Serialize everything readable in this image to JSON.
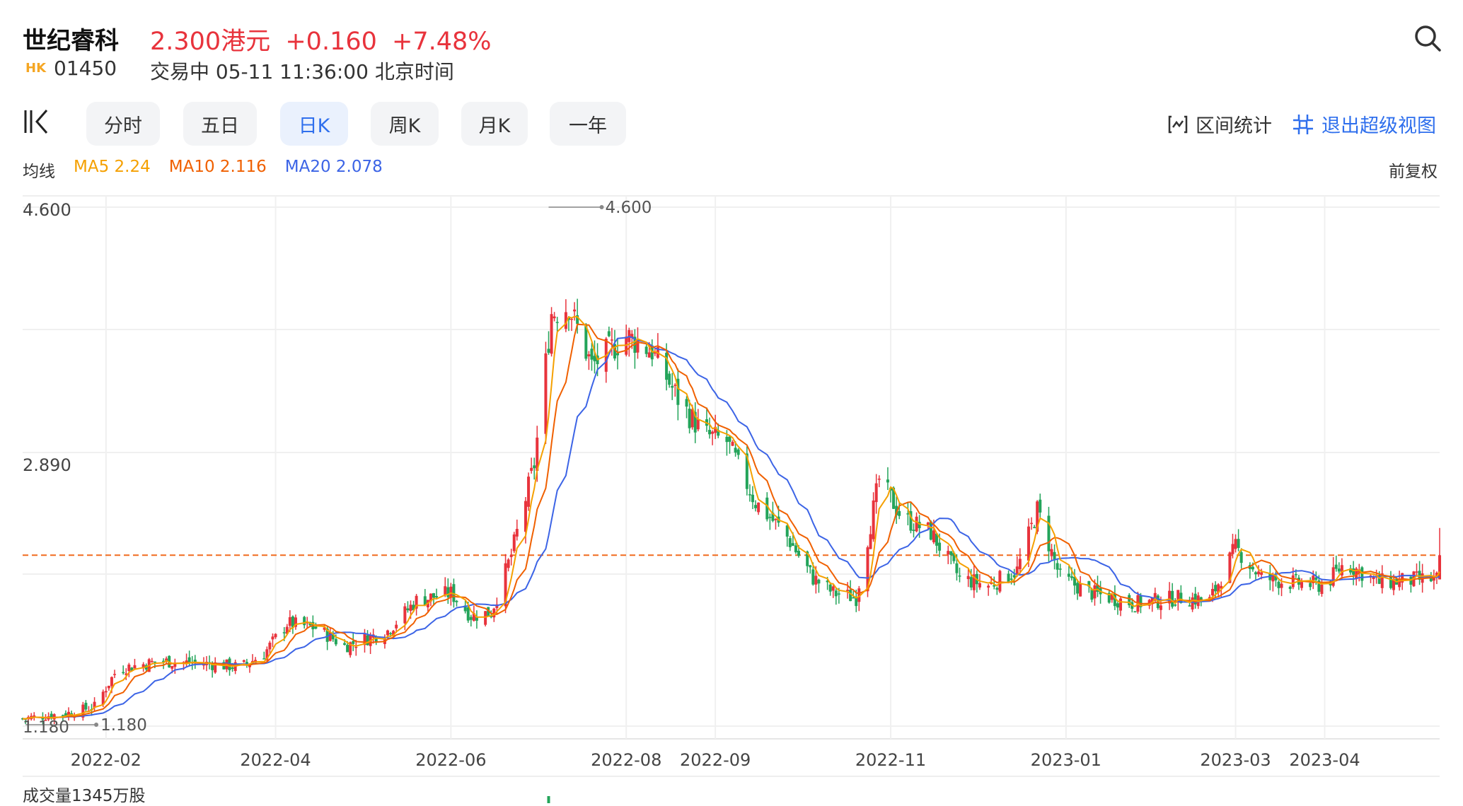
{
  "header": {
    "stock_name": "世纪睿科",
    "price": "2.300港元",
    "change": "+0.160",
    "change_pct": "+7.48%",
    "market": "HK",
    "code": "01450",
    "status": "交易中 05-11 11:36:00 北京时间"
  },
  "toolbar": {
    "tabs": [
      {
        "label": "分时",
        "active": false
      },
      {
        "label": "五日",
        "active": false
      },
      {
        "label": "日K",
        "active": true
      },
      {
        "label": "周K",
        "active": false
      },
      {
        "label": "月K",
        "active": false
      },
      {
        "label": "一年",
        "active": false
      }
    ],
    "interval_stats": "区间统计",
    "exit_super_view": "退出超级视图"
  },
  "ma_legend": {
    "title": "均线",
    "ma5": "MA5 2.24",
    "ma10": "MA10 2.116",
    "ma20": "MA20 2.078"
  },
  "adjust_label": "前复权",
  "volume_label": "成交量1345万股",
  "colors": {
    "up": "#e8333c",
    "down": "#23a45a",
    "ma5": "#f5a000",
    "ma10": "#f06000",
    "ma20": "#3c64e6",
    "last_price_line": "#f06a1e",
    "accent": "#2f6fed"
  },
  "chart_data": {
    "type": "candlestick",
    "y_tick_labels": [
      "4.600",
      "2.890"
    ],
    "x_tick_labels": [
      "2022-02",
      "2022-04",
      "2022-06",
      "2022-08",
      "2022-09",
      "2022-11",
      "2023-01",
      "2023-03",
      "2023-04"
    ],
    "ylim": [
      1.18,
      4.6
    ],
    "max_marker": {
      "date": "2022-07-05",
      "value": 4.6,
      "label": "4.600"
    },
    "min_marker": {
      "date": "2022-01-04",
      "value": 1.18,
      "label": "1.180"
    },
    "last_price": 2.3,
    "x_range": [
      "2022-01-03",
      "2023-05-11"
    ],
    "close_anchors": [
      [
        "2022-01-03",
        1.22
      ],
      [
        "2022-01-20",
        1.26
      ],
      [
        "2022-01-28",
        1.3
      ],
      [
        "2022-02-05",
        1.55
      ],
      [
        "2022-02-20",
        1.6
      ],
      [
        "2022-03-10",
        1.58
      ],
      [
        "2022-03-20",
        1.56
      ],
      [
        "2022-03-28",
        1.65
      ],
      [
        "2022-04-05",
        1.85
      ],
      [
        "2022-04-15",
        1.82
      ],
      [
        "2022-04-25",
        1.7
      ],
      [
        "2022-05-10",
        1.8
      ],
      [
        "2022-05-20",
        2.0
      ],
      [
        "2022-06-01",
        2.05
      ],
      [
        "2022-06-08",
        1.9
      ],
      [
        "2022-06-15",
        1.92
      ],
      [
        "2022-06-22",
        2.3
      ],
      [
        "2022-06-30",
        2.9
      ],
      [
        "2022-07-06",
        3.9
      ],
      [
        "2022-07-12",
        3.95
      ],
      [
        "2022-07-20",
        3.55
      ],
      [
        "2022-08-01",
        3.75
      ],
      [
        "2022-08-10",
        3.65
      ],
      [
        "2022-08-20",
        3.3
      ],
      [
        "2022-08-28",
        3.1
      ],
      [
        "2022-09-05",
        3.05
      ],
      [
        "2022-09-15",
        2.65
      ],
      [
        "2022-09-25",
        2.45
      ],
      [
        "2022-10-05",
        2.15
      ],
      [
        "2022-10-12",
        2.05
      ],
      [
        "2022-10-20",
        2.02
      ],
      [
        "2022-10-28",
        2.8
      ],
      [
        "2022-11-05",
        2.55
      ],
      [
        "2022-11-15",
        2.45
      ],
      [
        "2022-11-25",
        2.15
      ],
      [
        "2022-12-05",
        2.1
      ],
      [
        "2022-12-15",
        2.2
      ],
      [
        "2022-12-22",
        2.6
      ],
      [
        "2022-12-30",
        2.15
      ],
      [
        "2023-01-10",
        2.05
      ],
      [
        "2023-01-25",
        1.98
      ],
      [
        "2023-02-10",
        2.02
      ],
      [
        "2023-02-20",
        2.0
      ],
      [
        "2023-03-01",
        2.35
      ],
      [
        "2023-03-10",
        2.15
      ],
      [
        "2023-03-20",
        2.12
      ],
      [
        "2023-04-01",
        2.1
      ],
      [
        "2023-04-08",
        2.25
      ],
      [
        "2023-04-20",
        2.12
      ],
      [
        "2023-05-05",
        2.14
      ],
      [
        "2023-05-10",
        2.14
      ],
      [
        "2023-05-11",
        2.3
      ]
    ]
  }
}
